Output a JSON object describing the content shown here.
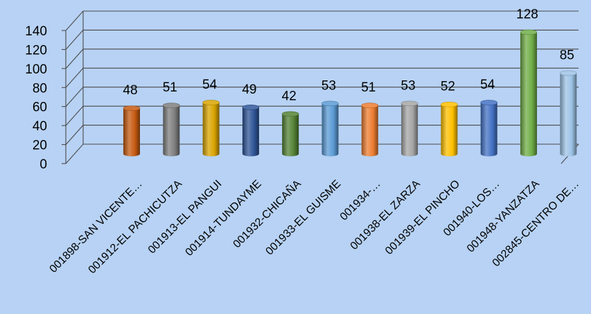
{
  "chart_data": {
    "type": "bar",
    "title": "",
    "xlabel": "",
    "ylabel": "",
    "ylim": [
      0,
      140
    ],
    "yticks": [
      0,
      20,
      40,
      60,
      80,
      100,
      120,
      140
    ],
    "grid": true,
    "legend": "none",
    "style": "3d-cylinder",
    "categories": [
      "001898-SAN VICENTE…",
      "001912-EL PACHICUTZA",
      "001913-EL PANGUI",
      "001914-TUNDAYME",
      "001932-CHICAÑA",
      "001933-EL GUISME",
      "001934-…",
      "001938-EL ZARZA",
      "001939-EL PINCHO",
      "001940-LOS…",
      "001948-YANZATZA",
      "002845-CENTRO DE…"
    ],
    "values": [
      48,
      51,
      54,
      49,
      42,
      53,
      51,
      53,
      52,
      54,
      128,
      85
    ],
    "colors": [
      "#c55a11",
      "#7f7f7f",
      "#d9a400",
      "#2f5597",
      "#548235",
      "#5b9bd5",
      "#ed7d31",
      "#a5a5a5",
      "#ffc000",
      "#4472c4",
      "#70ad47",
      "#9dc3e6"
    ]
  }
}
